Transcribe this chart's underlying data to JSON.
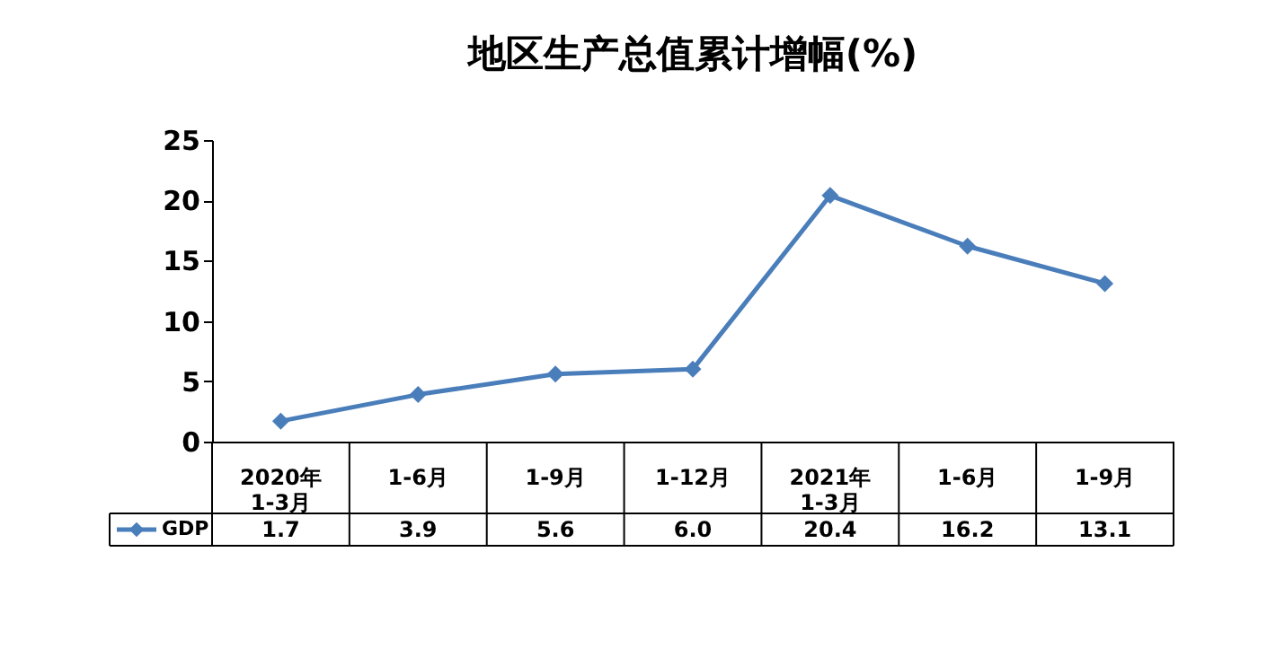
{
  "chart_data": {
    "type": "line",
    "title": "地区生产总值累计增幅(%)",
    "categories": [
      "2020年\n1-3月",
      "1-6月",
      "1-9月",
      "1-12月",
      "2021年\n1-3月",
      "1-6月",
      "1-9月"
    ],
    "series": [
      {
        "name": "GDP",
        "color": "#4a7ebb",
        "values": [
          1.7,
          3.9,
          5.6,
          6.0,
          20.4,
          16.2,
          13.1
        ],
        "value_labels": [
          "1.7",
          "3.9",
          "5.6",
          "6.0",
          "20.4",
          "16.2",
          "13.1"
        ]
      }
    ],
    "ylim": [
      0,
      25
    ],
    "yticks": [
      0,
      5,
      10,
      15,
      20,
      25
    ],
    "marker": "diamond",
    "line_style": "solid",
    "legend": "bottom left"
  }
}
